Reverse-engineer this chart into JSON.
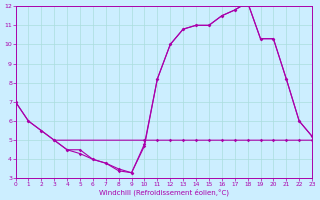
{
  "xlabel": "Windchill (Refroidissement éolien,°C)",
  "xlim": [
    0,
    23
  ],
  "ylim": [
    3,
    12
  ],
  "xticks": [
    0,
    1,
    2,
    3,
    4,
    5,
    6,
    7,
    8,
    9,
    10,
    11,
    12,
    13,
    14,
    15,
    16,
    17,
    18,
    19,
    20,
    21,
    22,
    23
  ],
  "yticks": [
    3,
    4,
    5,
    6,
    7,
    8,
    9,
    10,
    11,
    12
  ],
  "bg_color": "#cceeff",
  "grid_color": "#aadddd",
  "line_color": "#aa00aa",
  "line1_x": [
    0,
    1,
    2,
    3,
    10,
    11,
    12,
    13,
    14,
    15,
    16,
    17,
    18,
    19,
    20,
    21,
    22,
    23
  ],
  "line1_y": [
    7,
    6,
    5.5,
    5,
    5,
    5,
    5,
    5,
    5,
    5,
    5,
    5,
    5,
    5,
    5,
    5,
    5,
    5
  ],
  "line2_x": [
    0,
    1,
    2,
    3,
    4,
    5,
    6,
    7,
    8,
    9,
    10,
    11,
    12,
    13,
    14,
    15,
    16,
    17,
    18,
    19,
    20,
    21,
    22,
    23
  ],
  "line2_y": [
    7,
    6,
    5.5,
    5,
    4.5,
    4.3,
    4.0,
    3.8,
    3.4,
    3.3,
    4.7,
    8.2,
    10.0,
    10.8,
    11.0,
    11.0,
    11.5,
    11.8,
    12.2,
    10.3,
    10.3,
    8.2,
    6.0,
    5.2
  ],
  "line3_x": [
    3,
    4,
    5,
    6,
    7,
    8,
    9,
    10,
    11,
    12,
    13,
    14,
    15,
    16,
    17,
    18,
    19,
    20,
    21,
    22,
    23
  ],
  "line3_y": [
    5,
    4.5,
    4.5,
    4.0,
    3.8,
    3.5,
    3.3,
    4.8,
    8.2,
    10.0,
    10.8,
    11.0,
    11.0,
    11.5,
    11.8,
    12.2,
    10.3,
    10.3,
    8.2,
    6.0,
    5.2
  ]
}
